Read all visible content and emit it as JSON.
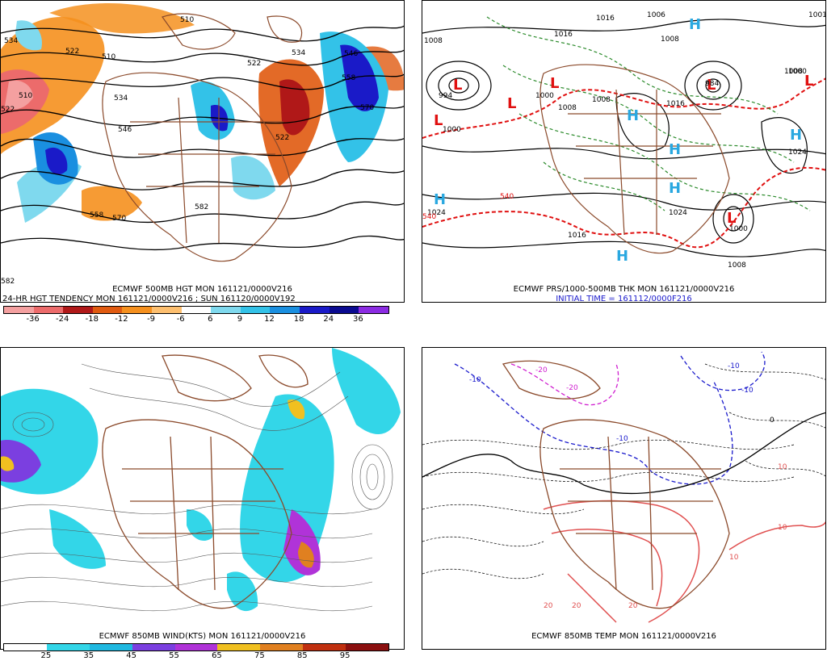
{
  "panels": {
    "p1": {
      "caption1": "ECMWF 500MB HGT MON 161121/0000V216",
      "caption2": "24-HR HGT TENDENCY MON 161121/0000V216 ; SUN 161120/0000V192",
      "colorbar": {
        "labels": [
          "-36",
          "-24",
          "-18",
          "-12",
          "-9",
          "-6",
          "6",
          "9",
          "12",
          "18",
          "24",
          "36"
        ],
        "colors": [
          "#f4a0a0",
          "#ec6b6b",
          "#b01818",
          "#e05a10",
          "#f5901e",
          "#fdbf6f",
          "#ffffff",
          "#7fd9ee",
          "#33c2e8",
          "#1a8fe0",
          "#1a1ac8",
          "#0a0a90",
          "#8b2be2"
        ]
      },
      "contour_labels": [
        "534",
        "522",
        "510",
        "510",
        "534",
        "522",
        "534",
        "546",
        "510",
        "522",
        "546",
        "558",
        "570",
        "558",
        "570",
        "582",
        "522",
        "582"
      ]
    },
    "p2": {
      "caption1": "ECMWF PRS/1000-500MB THK MON 161121/0000V216",
      "caption2": "INITIAL TIME = 161112/0000F216",
      "highs": [
        "H",
        "H",
        "H",
        "H",
        "H",
        "H",
        "H"
      ],
      "lows": [
        "L",
        "L",
        "L",
        "L",
        "L",
        "L",
        "L"
      ],
      "pressure_labels": [
        "1008",
        "1016",
        "1016",
        "1008",
        "1008",
        "1000",
        "1000",
        "1008",
        "1024",
        "1024",
        "1024",
        "1016",
        "1008",
        "1008",
        "1000",
        "1001",
        "984",
        "994",
        "1000",
        "1006",
        "1016"
      ],
      "thickness_labels": [
        "540",
        "540"
      ]
    },
    "p3": {
      "caption1": "ECMWF 850MB WIND(KTS) MON 161121/0000V216",
      "colorbar": {
        "labels": [
          "25",
          "35",
          "45",
          "55",
          "65",
          "75",
          "85",
          "95"
        ],
        "colors": [
          "#ffffff",
          "#33d6e8",
          "#1fb8e0",
          "#7b3fe0",
          "#b033d8",
          "#f0c020",
          "#e08020",
          "#c03010",
          "#8b1010"
        ]
      }
    },
    "p4": {
      "caption1": "ECMWF 850MB TEMP MON 161121/0000V216",
      "temp_labels": [
        "-20",
        "-20",
        "-10",
        "-10",
        "-10",
        "-10",
        "0",
        "10",
        "10",
        "10",
        "20",
        "20",
        "20"
      ]
    }
  },
  "colors": {
    "land": "#8b4a2b",
    "negative_tendency": "#e05a10",
    "positive_tendency": "#1a8fe0",
    "thickness": "#e01010",
    "isobar": "#000000",
    "wind_shade": "#33d6e8",
    "cold_temp": "#1a1acc",
    "very_cold_temp": "#d020d0",
    "warm_temp": "#e05050",
    "high_marker": "#2aa8e0",
    "low_marker": "#e01010"
  }
}
